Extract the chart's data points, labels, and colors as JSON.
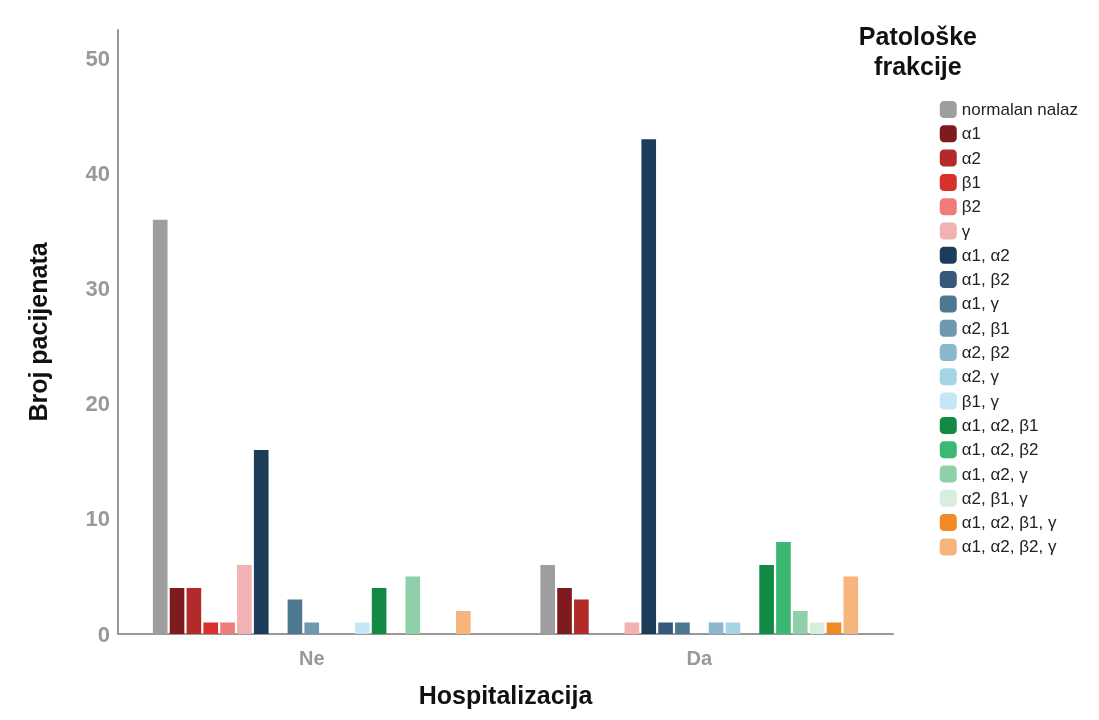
{
  "chart_data": {
    "type": "bar",
    "xlabel": "Hospitalizacija",
    "ylabel": "Broj pacijenata",
    "legend_title": "Patološke frakcije",
    "categories": [
      "Ne",
      "Da"
    ],
    "ylim": [
      0,
      52.5
    ],
    "yticks": [
      0,
      10,
      20,
      30,
      40,
      50
    ],
    "grid": false,
    "legend": "right",
    "series": [
      {
        "name": "normalan nalaz",
        "color": "#9e9e9e",
        "values": [
          36,
          6
        ]
      },
      {
        "name": "α1",
        "color": "#7f1a1f",
        "values": [
          4,
          4
        ]
      },
      {
        "name": "α2",
        "color": "#b22a2a",
        "values": [
          4,
          3
        ]
      },
      {
        "name": "β1",
        "color": "#d9302c",
        "values": [
          1,
          0
        ]
      },
      {
        "name": "β2",
        "color": "#ef7b7b",
        "values": [
          1,
          0
        ]
      },
      {
        "name": "γ",
        "color": "#f2b1b3",
        "values": [
          6,
          1
        ]
      },
      {
        "name": "α1, α2",
        "color": "#1c3d5a",
        "values": [
          16,
          43
        ]
      },
      {
        "name": "α1, β2",
        "color": "#36597a",
        "values": [
          0,
          1
        ]
      },
      {
        "name": "α1, γ",
        "color": "#4e7892",
        "values": [
          3,
          1
        ]
      },
      {
        "name": "α2, β1",
        "color": "#6e97b0",
        "values": [
          1,
          0
        ]
      },
      {
        "name": "α2, β2",
        "color": "#8ab7cc",
        "values": [
          0,
          1
        ]
      },
      {
        "name": "α2, γ",
        "color": "#a3d5e6",
        "values": [
          0,
          1
        ]
      },
      {
        "name": "β1, γ",
        "color": "#c4e6f5",
        "values": [
          1,
          0
        ]
      },
      {
        "name": "α1, α2, β1",
        "color": "#128a45",
        "values": [
          4,
          6
        ]
      },
      {
        "name": "α1, α2, β2",
        "color": "#3bb873",
        "values": [
          0,
          8
        ]
      },
      {
        "name": "α1, α2, γ",
        "color": "#8fd0aa",
        "values": [
          5,
          2
        ]
      },
      {
        "name": "α2, β1, γ",
        "color": "#d7eedd",
        "values": [
          0,
          1
        ]
      },
      {
        "name": "α1, α2, β1, γ",
        "color": "#f08a24",
        "values": [
          0,
          1
        ]
      },
      {
        "name": "α1, α2, β2, γ",
        "color": "#f5b57d",
        "values": [
          2,
          5
        ]
      }
    ]
  }
}
